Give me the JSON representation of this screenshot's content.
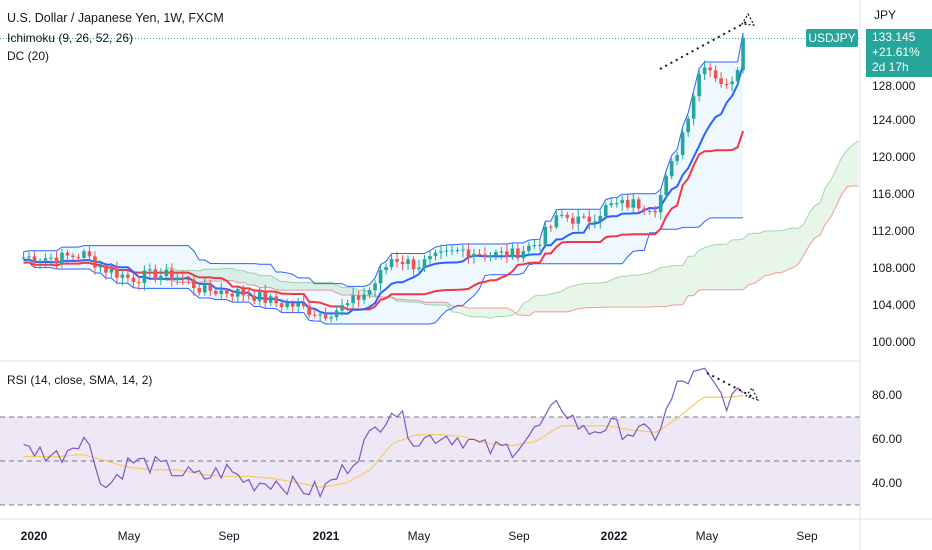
{
  "header": {
    "title": "U.S. Dollar / Japanese Yen, 1W, FXCM",
    "ichimoku": "Ichimoku (9, 26, 52, 26)",
    "dc": "DC (20)",
    "rsi": "RSI (14, close, SMA, 14, 2)"
  },
  "axis": {
    "unit": "JPY",
    "price_ticks": [
      "128.000",
      "124.000",
      "120.000",
      "116.000",
      "112.000",
      "108.000",
      "104.000",
      "100.000"
    ],
    "rsi_ticks": [
      "80.00",
      "60.00",
      "40.00"
    ],
    "x_ticks": [
      {
        "label": "2020",
        "year": true
      },
      {
        "label": "May",
        "year": false
      },
      {
        "label": "Sep",
        "year": false
      },
      {
        "label": "2021",
        "year": true
      },
      {
        "label": "May",
        "year": false
      },
      {
        "label": "Sep",
        "year": false
      },
      {
        "label": "2022",
        "year": true
      },
      {
        "label": "May",
        "year": false
      },
      {
        "label": "Sep",
        "year": false
      }
    ]
  },
  "badges": {
    "symbol": "USDJPY",
    "price": "133.145",
    "change": "+21.61%",
    "countdown": "2d 17h"
  },
  "colors": {
    "up": "#26a69a",
    "down": "#ef5350",
    "conversion": "#2962ff",
    "base": "#f23645",
    "donchian": "#2962ff",
    "rsi": "#7e57c2",
    "rsi_ma": "#f5d06a",
    "rsi_band": "#ede7f6"
  },
  "chart_data": [
    {
      "type": "candlestick",
      "title": "U.S. Dollar / Japanese Yen, 1W, FXCM",
      "x_range": [
        "2019-11",
        "2022-11"
      ],
      "ylim": [
        98,
        135
      ],
      "series": [
        {
          "name": "USDJPY close",
          "x": [
            "2019-12",
            "2020-01",
            "2020-02",
            "2020-03",
            "2020-04",
            "2020-05",
            "2020-06",
            "2020-07",
            "2020-08",
            "2020-09",
            "2020-10",
            "2020-11",
            "2020-12",
            "2021-01",
            "2021-02",
            "2021-03",
            "2021-04",
            "2021-05",
            "2021-06",
            "2021-07",
            "2021-08",
            "2021-09",
            "2021-10",
            "2021-11",
            "2021-12",
            "2022-01",
            "2022-02",
            "2022-03",
            "2022-04",
            "2022-05",
            "2022-06"
          ],
          "values": [
            109.5,
            109.4,
            109.8,
            108.2,
            107.2,
            107.6,
            107.4,
            106.0,
            105.8,
            105.5,
            104.6,
            104.2,
            103.3,
            104.2,
            106.0,
            109.5,
            108.6,
            109.5,
            110.3,
            109.8,
            109.8,
            111.0,
            114.0,
            113.3,
            115.0,
            115.3,
            115.0,
            121.5,
            130.8,
            127.8,
            133.1
          ]
        }
      ],
      "last_price": 133.145,
      "change": "+21.61%"
    },
    {
      "type": "line",
      "title": "RSI (14, close, SMA, 14, 2)",
      "ylim": [
        25,
        92
      ],
      "bands": [
        70,
        50,
        30
      ],
      "series": [
        {
          "name": "RSI",
          "values": [
            55,
            52,
            62,
            38,
            50,
            48,
            45,
            42,
            46,
            40,
            41,
            38,
            36,
            47,
            61,
            75,
            59,
            62,
            60,
            55,
            56,
            64,
            76,
            63,
            66,
            63,
            62,
            85,
            90,
            77,
            81
          ]
        },
        {
          "name": "RSI SMA",
          "values": [
            52,
            52,
            53,
            50,
            47,
            46,
            46,
            44,
            43,
            43,
            42,
            40,
            38,
            40,
            46,
            58,
            62,
            62,
            61,
            58,
            57,
            59,
            66,
            66,
            66,
            64,
            63,
            70,
            79,
            79,
            80
          ]
        }
      ]
    }
  ]
}
